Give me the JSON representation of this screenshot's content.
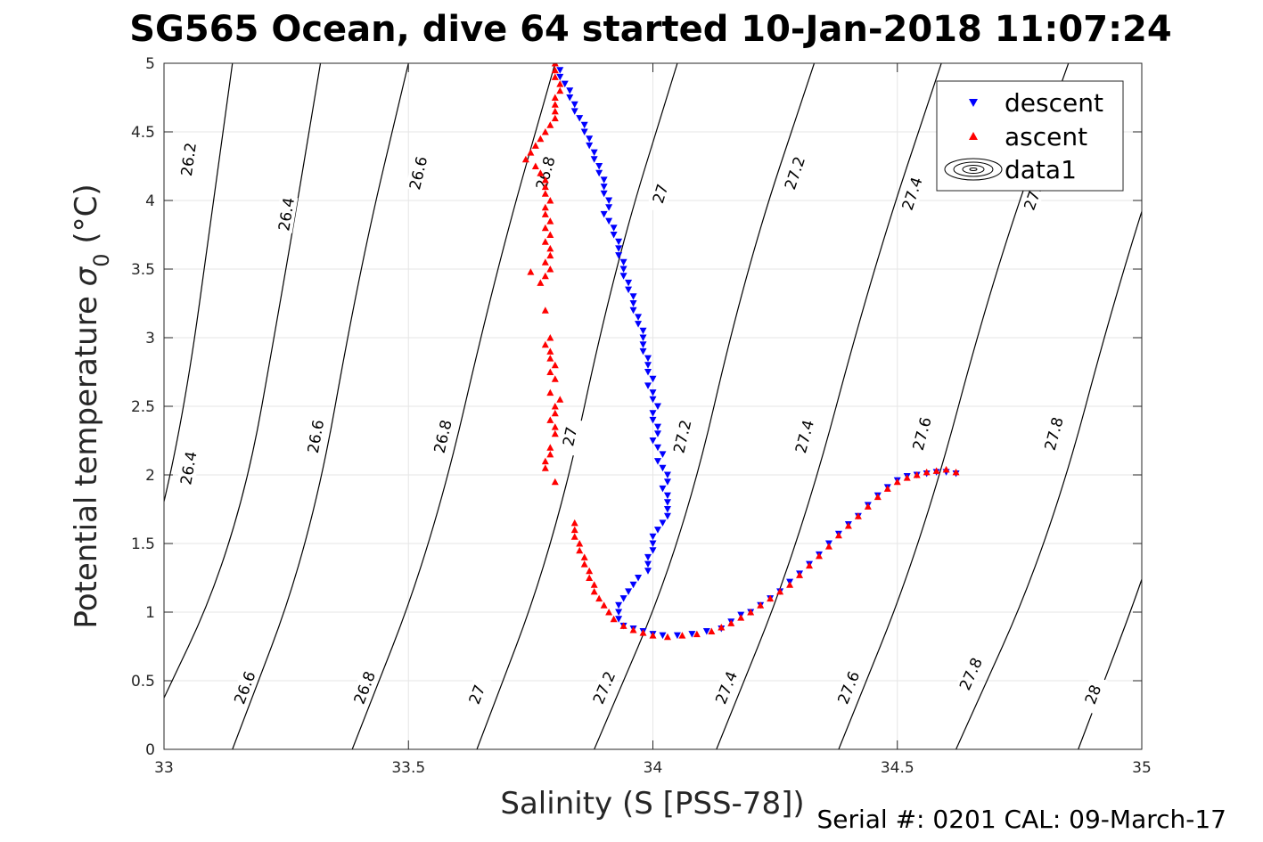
{
  "chart_data": {
    "type": "scatter",
    "title": "SG565 Ocean, dive 64 started 10-Jan-2018 11:07:24",
    "xlabel": "Salinity (S [PSS-78])",
    "ylabel_main": "Potential temperature ",
    "ylabel_sigma": "σ",
    "ylabel_sub": "0",
    "ylabel_unit": " (°C)",
    "footer": "Serial #: 0201  CAL: 09-March-17",
    "xlim": [
      33,
      35
    ],
    "ylim": [
      0,
      5
    ],
    "x_ticks": [
      "33",
      "33.5",
      "34",
      "34.5",
      "35"
    ],
    "y_ticks": [
      "0",
      "0.5",
      "1",
      "1.5",
      "2",
      "2.5",
      "3",
      "3.5",
      "4",
      "4.5",
      "5"
    ],
    "grid": true,
    "legend_position": "top-right",
    "legend": [
      "descent",
      "ascent",
      "data1"
    ],
    "colors": {
      "descent": "#0000ff",
      "ascent": "#ff0000",
      "contour": "#000000",
      "grid": "#e6e6e6"
    },
    "density_contours": [
      {
        "sigma": 26.2,
        "label": "26.2",
        "points": [
          [
            32.8,
            0
          ],
          [
            33.005,
            1.5
          ],
          [
            33.14,
            5.0
          ]
        ],
        "label_positions": [
          [
            33.05,
            4.3
          ]
        ]
      },
      {
        "sigma": 26.4,
        "label": "26.4",
        "points": [
          [
            32.95,
            0
          ],
          [
            33.15,
            1.5
          ],
          [
            33.25,
            3.5
          ],
          [
            33.32,
            5.0
          ]
        ],
        "label_positions": [
          [
            33.05,
            2.05
          ],
          [
            33.25,
            3.9
          ]
        ]
      },
      {
        "sigma": 26.6,
        "label": "26.6",
        "points": [
          [
            33.14,
            0
          ],
          [
            33.3,
            1.5
          ],
          [
            33.4,
            3.5
          ],
          [
            33.5,
            5.0
          ]
        ],
        "label_positions": [
          [
            33.165,
            0.45
          ],
          [
            33.31,
            2.28
          ],
          [
            33.52,
            4.2
          ]
        ]
      },
      {
        "sigma": 26.8,
        "label": "26.8",
        "points": [
          [
            33.385,
            0
          ],
          [
            33.55,
            1.5
          ],
          [
            33.68,
            3.5
          ],
          [
            33.8,
            5.0
          ]
        ],
        "label_positions": [
          [
            33.41,
            0.45
          ],
          [
            33.57,
            2.28
          ],
          [
            33.78,
            4.2
          ]
        ]
      },
      {
        "sigma": 27.0,
        "label": "27",
        "points": [
          [
            33.64,
            0
          ],
          [
            33.8,
            1.5
          ],
          [
            33.92,
            3.5
          ],
          [
            34.05,
            5.0
          ]
        ],
        "label_positions": [
          [
            33.64,
            0.4
          ],
          [
            33.83,
            2.28
          ],
          [
            34.015,
            4.05
          ]
        ]
      },
      {
        "sigma": 27.2,
        "label": "27.2",
        "points": [
          [
            33.88,
            0
          ],
          [
            34.06,
            1.5
          ],
          [
            34.19,
            3.5
          ],
          [
            34.33,
            5.0
          ]
        ],
        "label_positions": [
          [
            33.9,
            0.45
          ],
          [
            34.06,
            2.28
          ],
          [
            34.29,
            4.2
          ]
        ]
      },
      {
        "sigma": 27.4,
        "label": "27.4",
        "points": [
          [
            34.13,
            0
          ],
          [
            34.3,
            1.5
          ],
          [
            34.45,
            3.5
          ],
          [
            34.59,
            5.0
          ]
        ],
        "label_positions": [
          [
            34.15,
            0.45
          ],
          [
            34.31,
            2.28
          ],
          [
            34.53,
            4.05
          ]
        ]
      },
      {
        "sigma": 27.6,
        "label": "27.6",
        "points": [
          [
            34.38,
            0
          ],
          [
            34.55,
            1.5
          ],
          [
            34.7,
            3.5
          ],
          [
            34.85,
            5.0
          ]
        ],
        "label_positions": [
          [
            34.4,
            0.45
          ],
          [
            34.55,
            2.3
          ],
          [
            34.78,
            4.05
          ]
        ]
      },
      {
        "sigma": 27.8,
        "label": "27.8",
        "points": [
          [
            34.62,
            0
          ],
          [
            34.81,
            1.5
          ],
          [
            34.96,
            3.5
          ],
          [
            35.1,
            5.0
          ]
        ],
        "label_positions": [
          [
            34.65,
            0.55
          ],
          [
            34.82,
            2.3
          ]
        ]
      },
      {
        "sigma": 28.0,
        "label": "28",
        "points": [
          [
            34.87,
            0
          ],
          [
            35.03,
            1.5
          ],
          [
            35.15,
            3.0
          ]
        ],
        "label_positions": [
          [
            34.9,
            0.4
          ]
        ]
      }
    ],
    "series": [
      {
        "name": "descent",
        "marker": "triangle-down",
        "color": "#0000ff",
        "points": [
          [
            33.8,
            5.0
          ],
          [
            33.81,
            4.95
          ],
          [
            33.81,
            4.9
          ],
          [
            33.82,
            4.85
          ],
          [
            33.83,
            4.8
          ],
          [
            33.83,
            4.75
          ],
          [
            33.84,
            4.7
          ],
          [
            33.84,
            4.65
          ],
          [
            33.85,
            4.6
          ],
          [
            33.86,
            4.55
          ],
          [
            33.86,
            4.5
          ],
          [
            33.87,
            4.45
          ],
          [
            33.87,
            4.4
          ],
          [
            33.88,
            4.35
          ],
          [
            33.88,
            4.3
          ],
          [
            33.89,
            4.25
          ],
          [
            33.89,
            4.2
          ],
          [
            33.9,
            4.15
          ],
          [
            33.9,
            4.1
          ],
          [
            33.9,
            4.05
          ],
          [
            33.91,
            4.0
          ],
          [
            33.91,
            3.95
          ],
          [
            33.9,
            3.9
          ],
          [
            33.91,
            3.85
          ],
          [
            33.92,
            3.8
          ],
          [
            33.92,
            3.75
          ],
          [
            33.93,
            3.7
          ],
          [
            33.93,
            3.65
          ],
          [
            33.93,
            3.6
          ],
          [
            33.94,
            3.55
          ],
          [
            33.94,
            3.5
          ],
          [
            33.94,
            3.45
          ],
          [
            33.95,
            3.4
          ],
          [
            33.95,
            3.35
          ],
          [
            33.96,
            3.3
          ],
          [
            33.96,
            3.25
          ],
          [
            33.96,
            3.2
          ],
          [
            33.97,
            3.15
          ],
          [
            33.97,
            3.1
          ],
          [
            33.98,
            3.05
          ],
          [
            33.98,
            3.0
          ],
          [
            33.98,
            2.95
          ],
          [
            33.98,
            2.9
          ],
          [
            33.99,
            2.85
          ],
          [
            33.99,
            2.8
          ],
          [
            33.99,
            2.75
          ],
          [
            34.0,
            2.7
          ],
          [
            33.99,
            2.65
          ],
          [
            34.0,
            2.6
          ],
          [
            34.0,
            2.55
          ],
          [
            34.01,
            2.5
          ],
          [
            34.0,
            2.45
          ],
          [
            34.0,
            2.4
          ],
          [
            34.01,
            2.35
          ],
          [
            34.01,
            2.3
          ],
          [
            34.0,
            2.25
          ],
          [
            34.01,
            2.2
          ],
          [
            34.02,
            2.15
          ],
          [
            34.01,
            2.1
          ],
          [
            34.02,
            2.05
          ],
          [
            34.03,
            2.0
          ],
          [
            34.03,
            1.95
          ],
          [
            34.02,
            1.9
          ],
          [
            34.03,
            1.85
          ],
          [
            34.03,
            1.8
          ],
          [
            34.03,
            1.75
          ],
          [
            34.03,
            1.7
          ],
          [
            34.02,
            1.65
          ],
          [
            34.01,
            1.6
          ],
          [
            34.0,
            1.55
          ],
          [
            34.0,
            1.5
          ],
          [
            34.0,
            1.45
          ],
          [
            33.99,
            1.4
          ],
          [
            33.99,
            1.35
          ],
          [
            33.99,
            1.3
          ],
          [
            33.97,
            1.25
          ],
          [
            33.96,
            1.2
          ],
          [
            33.95,
            1.15
          ],
          [
            33.94,
            1.1
          ],
          [
            33.93,
            1.05
          ],
          [
            33.93,
            1.0
          ],
          [
            33.93,
            0.95
          ],
          [
            33.94,
            0.9
          ],
          [
            33.96,
            0.88
          ],
          [
            33.98,
            0.86
          ],
          [
            34.0,
            0.84
          ],
          [
            34.02,
            0.83
          ],
          [
            34.05,
            0.83
          ],
          [
            34.08,
            0.84
          ],
          [
            34.11,
            0.86
          ],
          [
            34.14,
            0.88
          ],
          [
            34.16,
            0.93
          ],
          [
            34.18,
            0.98
          ],
          [
            34.2,
            1.0
          ],
          [
            34.22,
            1.05
          ],
          [
            34.24,
            1.1
          ],
          [
            34.26,
            1.15
          ],
          [
            34.28,
            1.22
          ],
          [
            34.3,
            1.28
          ],
          [
            34.32,
            1.35
          ],
          [
            34.34,
            1.42
          ],
          [
            34.36,
            1.5
          ],
          [
            34.38,
            1.57
          ],
          [
            34.4,
            1.64
          ],
          [
            34.42,
            1.7
          ],
          [
            34.44,
            1.78
          ],
          [
            34.46,
            1.85
          ],
          [
            34.48,
            1.91
          ],
          [
            34.5,
            1.96
          ],
          [
            34.52,
            1.99
          ],
          [
            34.54,
            2.0
          ],
          [
            34.56,
            2.01
          ],
          [
            34.58,
            2.02
          ],
          [
            34.6,
            2.02
          ],
          [
            34.62,
            2.01
          ]
        ]
      },
      {
        "name": "ascent",
        "marker": "triangle-up",
        "color": "#ff0000",
        "points": [
          [
            33.8,
            5.0
          ],
          [
            33.8,
            4.95
          ],
          [
            33.8,
            4.9
          ],
          [
            33.81,
            4.85
          ],
          [
            33.81,
            4.8
          ],
          [
            33.8,
            4.75
          ],
          [
            33.8,
            4.7
          ],
          [
            33.8,
            4.65
          ],
          [
            33.8,
            4.6
          ],
          [
            33.79,
            4.55
          ],
          [
            33.78,
            4.5
          ],
          [
            33.77,
            4.45
          ],
          [
            33.76,
            4.4
          ],
          [
            33.75,
            4.35
          ],
          [
            33.74,
            4.3
          ],
          [
            33.76,
            4.25
          ],
          [
            33.77,
            4.2
          ],
          [
            33.78,
            4.15
          ],
          [
            33.78,
            4.1
          ],
          [
            33.78,
            4.05
          ],
          [
            33.79,
            4.0
          ],
          [
            33.78,
            3.95
          ],
          [
            33.78,
            3.9
          ],
          [
            33.79,
            3.85
          ],
          [
            33.78,
            3.8
          ],
          [
            33.79,
            3.75
          ],
          [
            33.78,
            3.7
          ],
          [
            33.79,
            3.65
          ],
          [
            33.79,
            3.6
          ],
          [
            33.78,
            3.55
          ],
          [
            33.79,
            3.5
          ],
          [
            33.78,
            3.45
          ],
          [
            33.75,
            3.48
          ],
          [
            33.77,
            3.4
          ],
          [
            33.78,
            3.2
          ],
          [
            33.79,
            3.0
          ],
          [
            33.78,
            2.95
          ],
          [
            33.79,
            2.9
          ],
          [
            33.79,
            2.85
          ],
          [
            33.8,
            2.8
          ],
          [
            33.79,
            2.75
          ],
          [
            33.8,
            2.7
          ],
          [
            33.79,
            2.6
          ],
          [
            33.81,
            2.55
          ],
          [
            33.8,
            2.5
          ],
          [
            33.8,
            2.45
          ],
          [
            33.79,
            2.4
          ],
          [
            33.8,
            2.35
          ],
          [
            33.8,
            2.3
          ],
          [
            33.79,
            2.2
          ],
          [
            33.79,
            2.15
          ],
          [
            33.78,
            2.1
          ],
          [
            33.78,
            2.05
          ],
          [
            33.8,
            1.95
          ],
          [
            33.84,
            1.65
          ],
          [
            33.84,
            1.6
          ],
          [
            33.84,
            1.55
          ],
          [
            33.85,
            1.5
          ],
          [
            33.85,
            1.45
          ],
          [
            33.86,
            1.4
          ],
          [
            33.86,
            1.35
          ],
          [
            33.87,
            1.3
          ],
          [
            33.87,
            1.25
          ],
          [
            33.88,
            1.2
          ],
          [
            33.88,
            1.15
          ],
          [
            33.89,
            1.1
          ],
          [
            33.9,
            1.05
          ],
          [
            33.91,
            1.0
          ],
          [
            33.92,
            0.95
          ],
          [
            33.94,
            0.9
          ],
          [
            33.96,
            0.87
          ],
          [
            33.98,
            0.85
          ],
          [
            34.0,
            0.83
          ],
          [
            34.03,
            0.82
          ],
          [
            34.06,
            0.83
          ],
          [
            34.09,
            0.84
          ],
          [
            34.12,
            0.86
          ],
          [
            34.14,
            0.89
          ],
          [
            34.16,
            0.92
          ],
          [
            34.18,
            0.96
          ],
          [
            34.2,
            1.0
          ],
          [
            34.22,
            1.05
          ],
          [
            34.24,
            1.1
          ],
          [
            34.26,
            1.15
          ],
          [
            34.28,
            1.2
          ],
          [
            34.3,
            1.27
          ],
          [
            34.32,
            1.34
          ],
          [
            34.34,
            1.41
          ],
          [
            34.36,
            1.48
          ],
          [
            34.38,
            1.56
          ],
          [
            34.4,
            1.63
          ],
          [
            34.42,
            1.7
          ],
          [
            34.44,
            1.77
          ],
          [
            34.46,
            1.84
          ],
          [
            34.48,
            1.9
          ],
          [
            34.5,
            1.95
          ],
          [
            34.52,
            1.98
          ],
          [
            34.54,
            2.0
          ],
          [
            34.56,
            2.02
          ],
          [
            34.58,
            2.03
          ],
          [
            34.6,
            2.04
          ],
          [
            34.62,
            2.02
          ]
        ]
      }
    ]
  }
}
